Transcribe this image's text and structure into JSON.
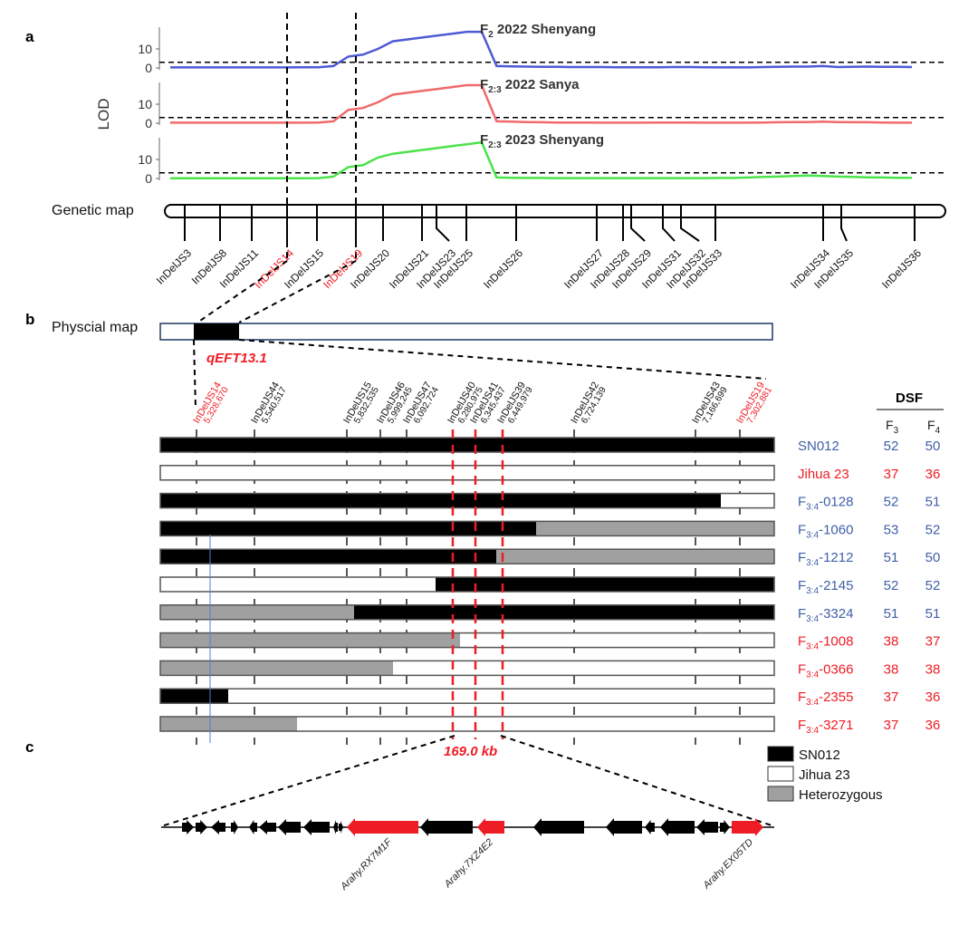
{
  "colors": {
    "blue": "#4f5bd5",
    "red": "#ee1c25",
    "blue_text": "#3f5fa8",
    "green": "#4be34b",
    "lod_red": "#f06a6a",
    "het": "#a0a0a0",
    "physmap_border": "#1f3864"
  },
  "panel_labels": {
    "a": "a",
    "b": "b",
    "c": "c"
  },
  "lod_panel": {
    "ylabel": "LOD",
    "threshold": 3.0,
    "ymax": 20,
    "ticks": [
      "10",
      "0"
    ],
    "tracks": [
      {
        "title_main": "F",
        "title_sub": "2",
        "title_rest": " 2022 Shenyang",
        "color": "blue",
        "lod": [
          0.3,
          0.3,
          0.3,
          0.3,
          0.3,
          0.3,
          0.3,
          0.3,
          0.3,
          0.4,
          0.4,
          1,
          6,
          7,
          10,
          14,
          15,
          16,
          17,
          18,
          19,
          19,
          1,
          0.8,
          0.7,
          0.6,
          0.6,
          0.5,
          0.5,
          0.5,
          0.4,
          0.4,
          0.4,
          0.4,
          0.5,
          0.5,
          0.4,
          0.3,
          0.4,
          0.3,
          0.5,
          0.6,
          0.7,
          0.7,
          1.0,
          0.5,
          0.6,
          0.7,
          0.6,
          0.6,
          0.5
        ]
      },
      {
        "title_main": "F",
        "title_sub": "2:3",
        "title_rest": " 2022 Sanya",
        "color": "lod_red",
        "lod": [
          0.3,
          0.3,
          0.3,
          0.3,
          0.3,
          0.3,
          0.3,
          0.3,
          0.3,
          0.3,
          0.4,
          1,
          7,
          8,
          11,
          15,
          16,
          17,
          18,
          19,
          20,
          20,
          1,
          0.8,
          0.6,
          0.5,
          0.4,
          0.4,
          0.4,
          0.3,
          0.3,
          0.3,
          0.3,
          0.4,
          0.4,
          0.4,
          0.3,
          0.3,
          0.3,
          0.3,
          0.4,
          0.5,
          0.6,
          0.6,
          0.8,
          0.6,
          0.5,
          0.5,
          0.4,
          0.3,
          0.3
        ]
      },
      {
        "title_main": "F",
        "title_sub": "2:3",
        "title_rest": " 2023 Shenyang",
        "color": "green",
        "lod": [
          0.1,
          0.1,
          0.1,
          0.1,
          0.1,
          0.1,
          0.1,
          0.1,
          0.1,
          0.1,
          0.2,
          1,
          6,
          7,
          11,
          13,
          14,
          15,
          16,
          17,
          18,
          19,
          0.5,
          0.4,
          0.3,
          0.3,
          0.2,
          0.2,
          0.2,
          0.2,
          0.2,
          0.2,
          0.2,
          0.2,
          0.2,
          0.2,
          0.2,
          0.3,
          0.3,
          0.5,
          0.8,
          1.0,
          1.3,
          1.5,
          1.3,
          1.0,
          0.8,
          0.6,
          0.5,
          0.4,
          0.4
        ]
      }
    ]
  },
  "genetic_map": {
    "label": "Genetic map",
    "markers": [
      "InDelJS3",
      "InDelJS8",
      "InDelJS11",
      "InDelJS14",
      "InDelJS15",
      "InDelJS19",
      "InDelJS20",
      "InDelJS21",
      "InDelJS23",
      "InDelJS25",
      "InDelJS26",
      "InDelJS27",
      "InDelJS28",
      "InDelJS29",
      "InDelJS31",
      "InDelJS32",
      "InDelJS33",
      "InDelJS34",
      "InDelJS35",
      "InDelJS36"
    ],
    "highlighted": [
      "InDelJS14",
      "InDelJS19"
    ]
  },
  "physical_map": {
    "label": "Physcial map",
    "qtl_name": "qEFT13.1",
    "markers": [
      {
        "name": "InDelJS14",
        "pos": "5,328,670",
        "hl": true
      },
      {
        "name": "InDelJS44",
        "pos": "5,540,517",
        "hl": false
      },
      {
        "name": "InDelJS15",
        "pos": "5,832,535",
        "hl": false
      },
      {
        "name": "InDelJS46",
        "pos": "5,999,245",
        "hl": false
      },
      {
        "name": "InDelJS47",
        "pos": "6,092,724",
        "hl": false
      },
      {
        "name": "InDelJS40",
        "pos": "6,280,975",
        "hl": false
      },
      {
        "name": "InDelJS41",
        "pos": "6,345,437",
        "hl": false
      },
      {
        "name": "InDelJS39",
        "pos": "6,449,979",
        "hl": false
      },
      {
        "name": "InDelJS42",
        "pos": "6,724,139",
        "hl": false
      },
      {
        "name": "InDelJS43",
        "pos": "7,166,699",
        "hl": false
      },
      {
        "name": "InDelJS19",
        "pos": "7,302,881",
        "hl": true
      }
    ]
  },
  "dsf": {
    "title": "DSF",
    "col_f3_main": "F",
    "col_f3_sub": "3",
    "col_f4_main": "F",
    "col_f4_sub": "4",
    "rows": [
      {
        "pre": "",
        "sub": "",
        "name": "SN012",
        "f3": "52",
        "f4": "50",
        "color": "blue_text"
      },
      {
        "pre": "",
        "sub": "",
        "name": "Jihua 23",
        "f3": "37",
        "f4": "36",
        "color": "red"
      },
      {
        "pre": "F",
        "sub": "3:4",
        "name": "-0128",
        "f3": "52",
        "f4": "51",
        "color": "blue_text"
      },
      {
        "pre": "F",
        "sub": "3:4",
        "name": "-1060",
        "f3": "53",
        "f4": "52",
        "color": "blue_text"
      },
      {
        "pre": "F",
        "sub": "3:4",
        "name": "-1212",
        "f3": "51",
        "f4": "50",
        "color": "blue_text"
      },
      {
        "pre": "F",
        "sub": "3:4",
        "name": "-2145",
        "f3": "52",
        "f4": "52",
        "color": "blue_text"
      },
      {
        "pre": "F",
        "sub": "3:4",
        "name": "-3324",
        "f3": "51",
        "f4": "51",
        "color": "blue_text"
      },
      {
        "pre": "F",
        "sub": "3:4",
        "name": "-1008",
        "f3": "38",
        "f4": "37",
        "color": "red"
      },
      {
        "pre": "F",
        "sub": "3:4",
        "name": "-0366",
        "f3": "38",
        "f4": "38",
        "color": "red"
      },
      {
        "pre": "F",
        "sub": "3:4",
        "name": "-2355",
        "f3": "37",
        "f4": "36",
        "color": "red"
      },
      {
        "pre": "F",
        "sub": "3:4",
        "name": "-3271",
        "f3": "37",
        "f4": "36",
        "color": "red"
      }
    ]
  },
  "interval": {
    "size": "169.0 kb"
  },
  "legend": [
    {
      "label": "SN012",
      "fill": "#000000"
    },
    {
      "label": "Jihua 23",
      "fill": "#ffffff"
    },
    {
      "label": "Heterozygous",
      "fill": "#a0a0a0"
    }
  ],
  "genes": {
    "labels": [
      "Arahy.RX7M1F",
      "Arahy.7XZ4E2",
      "Arahy.EX05TD"
    ]
  }
}
